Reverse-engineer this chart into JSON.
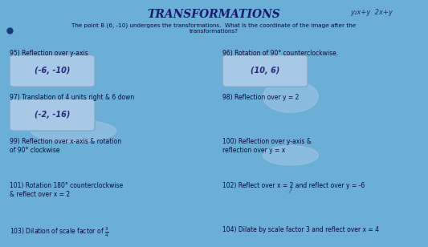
{
  "bg_color": "#6baed6",
  "title": "TRANSFORMATIONS",
  "title_color": "#1a1a6e",
  "subtitle": "The point B (6, -10) undergoes the transformations.  What is the coordinate of the image after the\ntransformations?",
  "subtitle_color": "#1a1a2e",
  "handwritten_note_top": "y₂x+y  2x+y",
  "problems": [
    {
      "number": "95)",
      "text": "Reflection over y-axis",
      "answer": "(-6, -10)",
      "col": 0
    },
    {
      "number": "96)",
      "text": "Rotation of 90° counterclockwise.",
      "answer": "(10, 6)",
      "col": 1
    },
    {
      "number": "97)",
      "text": "Translation of 4 units right & 6 down",
      "answer": "(-2, -16)",
      "col": 0
    },
    {
      "number": "98)",
      "text": "Reflection over y = 2",
      "answer": "",
      "col": 1
    },
    {
      "number": "99)",
      "text": "Reflection over x-axis & rotation\nof 90° clockwise",
      "answer": "",
      "col": 0
    },
    {
      "number": "100)",
      "text": "Reflection over y-axis &\nreflection over y = x",
      "answer": "",
      "col": 1
    },
    {
      "number": "101)",
      "text": "Rotation 180° counterclockwise\n& reflect over x = 2",
      "answer": "",
      "col": 0
    },
    {
      "number": "102)",
      "text": "Reflect over x = 2 and reflect over y = -6",
      "answer": "",
      "col": 1
    },
    {
      "number": "103)",
      "text": "Dilation of scale factor of $\\frac{3}{4}$",
      "answer": "",
      "col": 0
    },
    {
      "number": "104)",
      "text": "Dilate by scale factor 3 and reflect over x = 4",
      "answer": "",
      "col": 1
    }
  ],
  "answer_box_color": "#a8c8e8",
  "answer_box_edge": "#7aaac8",
  "text_color_dark": "#0a0a3a",
  "handwritten_color": "#2a2a7a"
}
